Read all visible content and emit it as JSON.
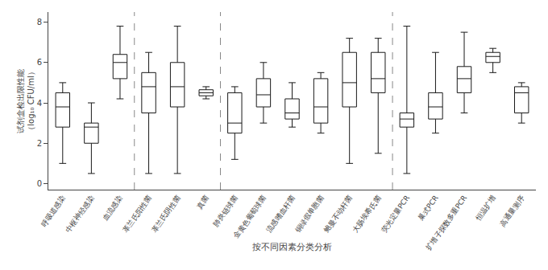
{
  "chart_data": {
    "type": "box",
    "xlabel": "按不同因素分类分析",
    "ylabel": "试剂盒检出限性能\n（log₁₀ CFU/ml）",
    "ylim": [
      -0.3,
      8.5
    ],
    "yticks": [
      0,
      2,
      4,
      6,
      8
    ],
    "grid": false,
    "categories": [
      "呼吸道感染",
      "中枢神经感染",
      "血流感染",
      "革兰氏阳性菌",
      "革兰氏阴性菌",
      "真菌",
      "肺炎链球菌",
      "金黄色葡萄球菌",
      "流感嗜血杆菌",
      "铜绿假单胞菌",
      "鲍曼不动杆菌",
      "大肠埃希氏菌",
      "荧光定量PCR",
      "巢式PCR",
      "扩增子探数多重PCR",
      "恒温扩增",
      "高通量测序"
    ],
    "boxes": [
      {
        "whislo": 1.0,
        "q1": 2.8,
        "med": 3.8,
        "q3": 4.5,
        "whishi": 5.0
      },
      {
        "whislo": 0.5,
        "q1": 2.0,
        "med": 2.8,
        "q3": 3.0,
        "whishi": 4.0
      },
      {
        "whislo": 4.2,
        "q1": 5.2,
        "med": 6.0,
        "q3": 6.4,
        "whishi": 7.8
      },
      {
        "whislo": 0.5,
        "q1": 3.5,
        "med": 4.8,
        "q3": 5.5,
        "whishi": 6.5
      },
      {
        "whislo": 0.5,
        "q1": 3.8,
        "med": 4.8,
        "q3": 6.0,
        "whishi": 7.8
      },
      {
        "whislo": 4.2,
        "q1": 4.35,
        "med": 4.5,
        "q3": 4.65,
        "whishi": 4.8
      },
      {
        "whislo": 1.2,
        "q1": 2.5,
        "med": 3.0,
        "q3": 4.5,
        "whishi": 4.8
      },
      {
        "whislo": 3.0,
        "q1": 3.8,
        "med": 4.4,
        "q3": 5.2,
        "whishi": 6.0
      },
      {
        "whislo": 2.8,
        "q1": 3.2,
        "med": 3.5,
        "q3": 4.2,
        "whishi": 5.0
      },
      {
        "whislo": 2.5,
        "q1": 3.0,
        "med": 3.8,
        "q3": 5.2,
        "whishi": 5.5
      },
      {
        "whislo": 1.0,
        "q1": 3.8,
        "med": 5.0,
        "q3": 6.5,
        "whishi": 7.2
      },
      {
        "whislo": 1.5,
        "q1": 4.5,
        "med": 5.2,
        "q3": 6.5,
        "whishi": 7.2
      },
      {
        "whislo": 0.5,
        "q1": 2.8,
        "med": 3.2,
        "q3": 3.5,
        "whishi": 7.8
      },
      {
        "whislo": 2.5,
        "q1": 3.2,
        "med": 3.8,
        "q3": 4.5,
        "whishi": 6.5
      },
      {
        "whislo": 3.5,
        "q1": 4.5,
        "med": 5.2,
        "q3": 5.8,
        "whishi": 7.5
      },
      {
        "whislo": 5.5,
        "q1": 6.0,
        "med": 6.3,
        "q3": 6.5,
        "whishi": 6.7
      },
      {
        "whislo": 3.0,
        "q1": 3.5,
        "med": 4.5,
        "q3": 4.8,
        "whishi": 5.0
      }
    ],
    "color": "#1a1a1a",
    "fillcolor": "#ffffff",
    "separators": {
      "after": [
        3,
        6,
        12
      ],
      "color": "#888888",
      "line_style": "dashed"
    }
  }
}
